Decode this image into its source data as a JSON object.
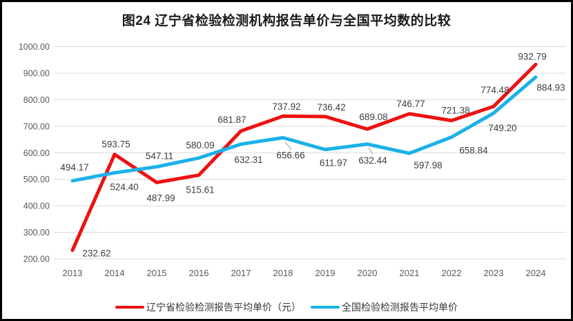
{
  "title": "图24 辽宁省检验检测机构报告单价与全国平均数的比较",
  "chart_data": {
    "type": "line",
    "x": [
      "2013",
      "2014",
      "2015",
      "2016",
      "2017",
      "2018",
      "2019",
      "2020",
      "2021",
      "2022",
      "2023",
      "2024"
    ],
    "series": [
      {
        "name": "辽宁省检验检测报告平均单价（元）",
        "color": "#ED1111",
        "values": [
          232.62,
          593.75,
          487.99,
          515.61,
          681.87,
          737.92,
          736.42,
          689.08,
          746.77,
          721.38,
          774.48,
          932.79
        ]
      },
      {
        "name": "全国检验检测报告平均单价",
        "color": "#1BB1E8",
        "values": [
          494.17,
          524.4,
          547.11,
          580.09,
          632.31,
          656.66,
          611.97,
          632.44,
          597.98,
          658.84,
          749.2,
          884.93
        ]
      }
    ],
    "ylim": [
      200,
      1000
    ],
    "ytick_step": 100,
    "ytick_decimals": 2,
    "value_labels": true,
    "grid": true,
    "legend_position": "bottom",
    "colors": {
      "grid": "#D9D9D9",
      "axis_text": "#595959",
      "value_label_text": "#3D3D3D",
      "leader_line": "#A6A6A6"
    }
  }
}
